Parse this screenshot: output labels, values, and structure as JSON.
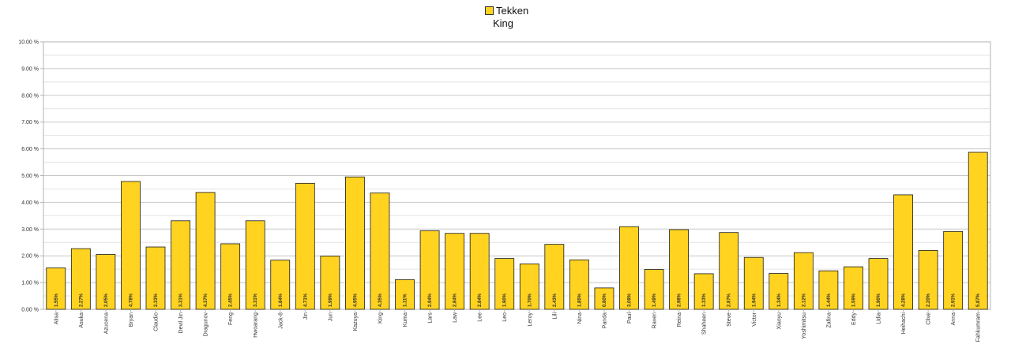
{
  "chart_data": {
    "type": "bar",
    "title": "King",
    "legend": {
      "position": "top",
      "entries": [
        "Tekken"
      ]
    },
    "series": [
      {
        "name": "Tekken",
        "color": "#ffd320",
        "values": [
          1.55,
          2.27,
          2.05,
          4.78,
          2.33,
          3.31,
          4.37,
          2.45,
          3.31,
          1.84,
          4.71,
          1.99,
          4.95,
          4.35,
          1.11,
          2.94,
          2.84,
          2.84,
          1.9,
          1.7,
          2.43,
          1.85,
          0.8,
          3.09,
          1.49,
          2.98,
          1.33,
          2.87,
          1.94,
          1.34,
          2.12,
          1.44,
          1.59,
          1.9,
          4.28,
          2.2,
          2.91,
          5.87
        ]
      }
    ],
    "categories": [
      "Alisa",
      "Asuka",
      "Azucena",
      "Bryan",
      "Claudio",
      "Devil Jin",
      "Dragunov",
      "Feng",
      "Hwoarang",
      "Jack-8",
      "Jin",
      "Jun",
      "Kazuya",
      "King",
      "Kuma",
      "Lars",
      "Law",
      "Lee",
      "Leo",
      "Leroy",
      "Lili",
      "Nina",
      "Panda",
      "Paul",
      "Raven",
      "Reina",
      "Shaheen",
      "Steve",
      "Victor",
      "Xiaoyu",
      "Yoshimitsu",
      "Zafina",
      "Eddy",
      "Lidia",
      "Heihachi",
      "Clive",
      "Anna",
      "Fahkumram"
    ],
    "data_labels": [
      "1.55%",
      "2.27%",
      "2.05%",
      "4.78%",
      "2.33%",
      "3.31%",
      "4.37%",
      "2.45%",
      "3.31%",
      "1.84%",
      "4.71%",
      "1.99%",
      "4.95%",
      "4.35%",
      "1.11%",
      "2.94%",
      "2.84%",
      "2.84%",
      "1.90%",
      "1.70%",
      "2.43%",
      "1.85%",
      "0.80%",
      "3.09%",
      "1.49%",
      "2.98%",
      "1.33%",
      "2.87%",
      "1.94%",
      "1.34%",
      "2.12%",
      "1.44%",
      "1.59%",
      "1.90%",
      "4.28%",
      "2.20%",
      "2.91%",
      "5.87%"
    ],
    "y_ticks": [
      "0.00 %",
      "1.00 %",
      "2.00 %",
      "3.00 %",
      "4.00 %",
      "5.00 %",
      "6.00 %",
      "7.00 %",
      "8.00 %",
      "9.00 %",
      "10.00 %"
    ],
    "ylim": [
      0,
      10
    ],
    "grid": true,
    "xlabel": "",
    "ylabel": ""
  }
}
